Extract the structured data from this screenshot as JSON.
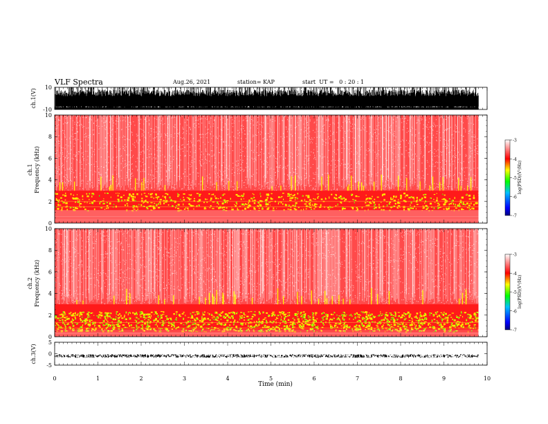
{
  "header": {
    "title": "VLF Spectra",
    "date": "Aug.26, 2021",
    "station": "station= KAP",
    "start": "start  UT =   0 : 20 : 1"
  },
  "chart_data": [
    {
      "type": "line",
      "panel": "ch1-waveform",
      "ylabel": "ch.1(V)",
      "ylim": [
        -10,
        10
      ],
      "y_ticks": [
        "10",
        "-10"
      ],
      "xlim": [
        0,
        10
      ],
      "description_values": {
        "amplitude_range": [
          -10,
          10
        ]
      }
    },
    {
      "type": "heatmap",
      "panel": "ch1-spectrogram",
      "ylabel": "ch.1\nFrequency  (kHz)",
      "ylabel_line1": "ch.1",
      "ylabel_line2": "Frequency  (kHz)",
      "ylim": [
        0,
        10
      ],
      "y_ticks": [
        "0",
        "2",
        "4",
        "6",
        "8",
        "10"
      ],
      "xlim": [
        0,
        9.8
      ],
      "enhanced_band_khz": [
        1.2,
        3.0
      ],
      "colorbar": {
        "label": "log(PSD)(V²/Hz)",
        "range": [
          -7,
          -3
        ],
        "ticks": [
          "-3",
          "-4",
          "-5",
          "-6",
          "-7"
        ]
      }
    },
    {
      "type": "heatmap",
      "panel": "ch2-spectrogram",
      "ylabel_line1": "ch.2",
      "ylabel_line2": "Frequency  (kHz)",
      "ylim": [
        0,
        10
      ],
      "y_ticks": [
        "0",
        "2",
        "4",
        "6",
        "8",
        "10"
      ],
      "xlim": [
        0,
        9.8
      ],
      "enhanced_band_khz": [
        0.5,
        3.0
      ],
      "colorbar": {
        "label": "log(PSD)(V²/Hz)",
        "range": [
          -7,
          -3
        ],
        "ticks": [
          "-3",
          "-4",
          "-5",
          "-6",
          "-7"
        ]
      }
    },
    {
      "type": "line",
      "panel": "ch3-waveform",
      "ylabel": "ch.3(V)",
      "ylim": [
        -5,
        5
      ],
      "y_ticks": [
        "5",
        "0",
        "-5"
      ],
      "level": -1
    }
  ],
  "xaxis": {
    "label": "Time  (min)",
    "ticks": [
      "0",
      "1",
      "2",
      "3",
      "4",
      "5",
      "6",
      "7",
      "8",
      "9",
      "10"
    ],
    "range": [
      0,
      10
    ]
  },
  "colors": {
    "white": "#ffffff",
    "red": "#ff1a1a",
    "yellow": "#ffff00",
    "green": "#00ff00",
    "blue": "#0000ff"
  }
}
